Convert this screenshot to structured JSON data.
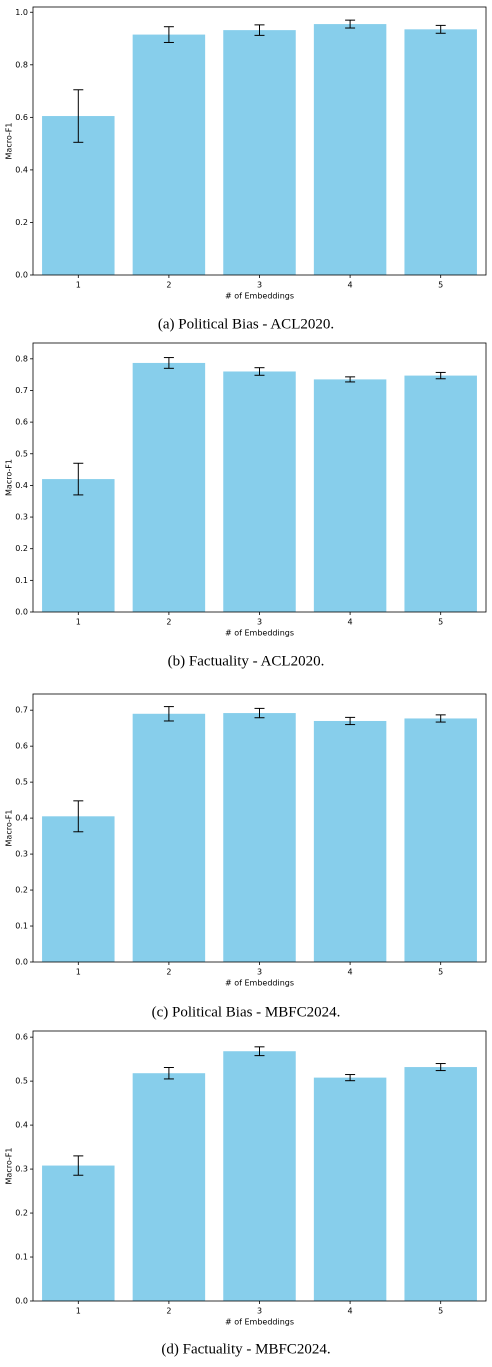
{
  "chart_data": [
    {
      "type": "bar",
      "caption": "(a) Political Bias - ACL2020.",
      "xlabel": "# of Embeddings",
      "ylabel": "Macro-F1",
      "categories": [
        "1",
        "2",
        "3",
        "4",
        "5"
      ],
      "values": [
        0.605,
        0.915,
        0.932,
        0.955,
        0.935
      ],
      "errors": [
        0.1,
        0.03,
        0.02,
        0.015,
        0.015
      ],
      "color": "#87ceeb",
      "ylim": [
        0,
        1.02
      ],
      "yticks": [
        {
          "value": 0,
          "label": "0.0"
        },
        0.2,
        0.4,
        0.6,
        0.8,
        {
          "value": 1,
          "label": "1.0"
        }
      ]
    },
    {
      "type": "bar",
      "caption": "(b) Factuality - ACL2020.",
      "xlabel": "# of Embeddings",
      "ylabel": "Macro-F1",
      "categories": [
        "1",
        "2",
        "3",
        "4",
        "5"
      ],
      "values": [
        0.42,
        0.787,
        0.76,
        0.735,
        0.747
      ],
      "errors": [
        0.05,
        0.017,
        0.012,
        0.008,
        0.01
      ],
      "color": "#87ceeb",
      "ylim": [
        0,
        0.85
      ],
      "yticks": [
        {
          "value": 0,
          "label": "0.0"
        },
        0.1,
        0.2,
        0.3,
        0.4,
        0.5,
        0.6,
        0.7,
        0.8
      ]
    },
    {
      "type": "bar",
      "caption": "(c) Political Bias - MBFC2024.",
      "xlabel": "# of Embeddings",
      "ylabel": "Macro-F1",
      "categories": [
        "1",
        "2",
        "3",
        "4",
        "5"
      ],
      "values": [
        0.405,
        0.69,
        0.692,
        0.67,
        0.677
      ],
      "errors": [
        0.043,
        0.02,
        0.013,
        0.01,
        0.01
      ],
      "color": "#87ceeb",
      "ylim": [
        0,
        0.745
      ],
      "yticks": [
        {
          "value": 0,
          "label": "0.0"
        },
        0.1,
        0.2,
        0.3,
        0.4,
        0.5,
        0.6,
        0.7
      ]
    },
    {
      "type": "bar",
      "caption": "(d) Factuality - MBFC2024.",
      "xlabel": "# of Embeddings",
      "ylabel": "Macro-F1",
      "categories": [
        "1",
        "2",
        "3",
        "4",
        "5"
      ],
      "values": [
        0.308,
        0.518,
        0.568,
        0.508,
        0.532
      ],
      "errors": [
        0.022,
        0.013,
        0.01,
        0.007,
        0.008
      ],
      "color": "#87ceeb",
      "ylim": [
        0,
        0.614
      ],
      "yticks": [
        {
          "value": 0,
          "label": "0.0"
        },
        0.1,
        0.2,
        0.3,
        0.4,
        0.5,
        0.6
      ]
    }
  ]
}
